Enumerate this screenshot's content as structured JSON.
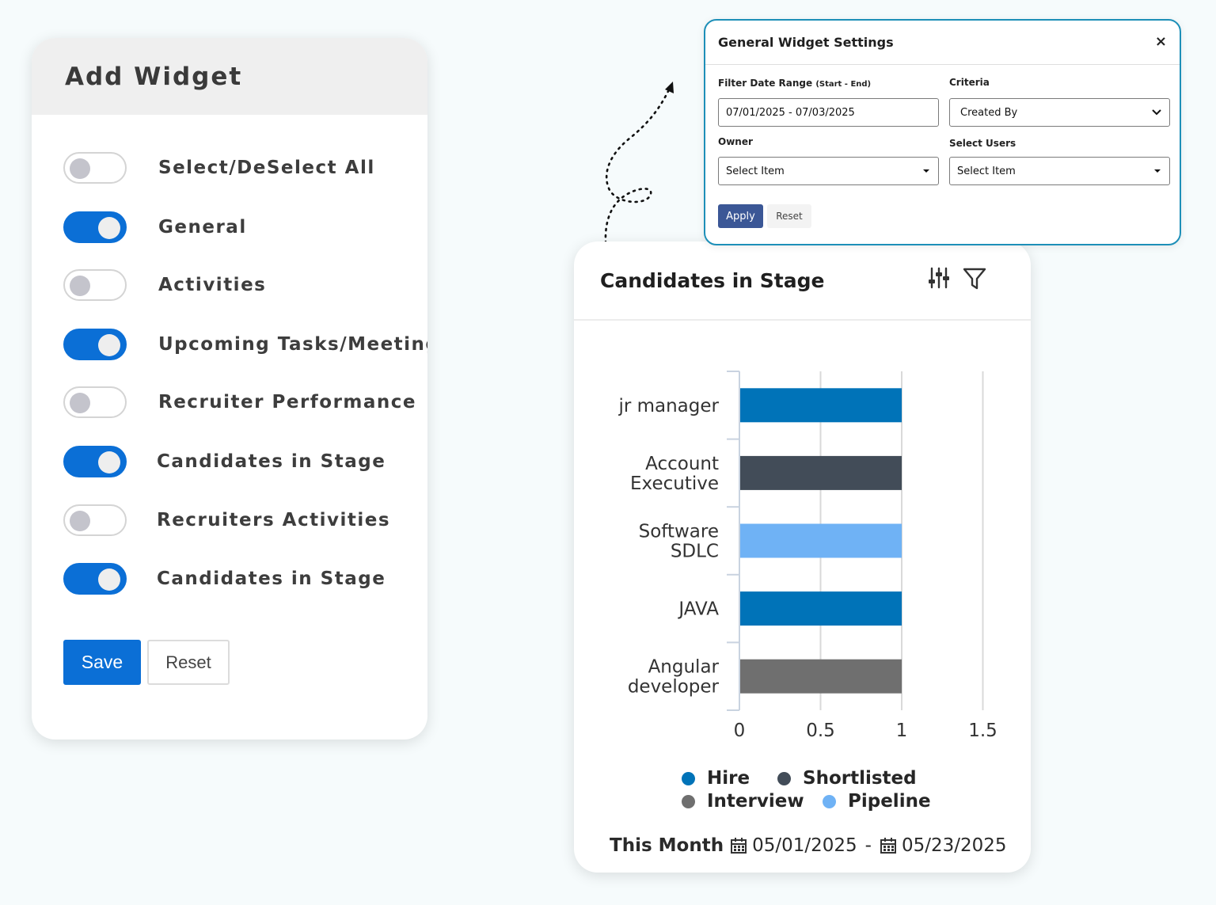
{
  "add_widget": {
    "title": "Add Widget",
    "toggles": [
      {
        "label": "Select/DeSelect All",
        "on": false
      },
      {
        "label": "General",
        "on": true
      },
      {
        "label": "Activities",
        "on": false
      },
      {
        "label": "Upcoming Tasks/Meetings",
        "on": true
      },
      {
        "label": "Recruiter Performance",
        "on": false
      },
      {
        "label": "Candidates in Stage",
        "on": true
      },
      {
        "label": "Recruiters Activities",
        "on": false
      },
      {
        "label": "Candidates in Stage",
        "on": true
      }
    ],
    "save_label": "Save",
    "reset_label": "Reset"
  },
  "settings": {
    "title": "General Widget Settings",
    "close_icon": "×",
    "date_range_label": "Filter Date Range",
    "date_range_hint": "(Start - End)",
    "date_range_value": "07/01/2025 - 07/03/2025",
    "criteria_label": "Criteria",
    "criteria_value": "Created By",
    "owner_label": "Owner",
    "owner_value": "Select Item",
    "users_label": "Select Users",
    "users_value": "Select Item",
    "apply_label": "Apply",
    "reset_label": "Reset"
  },
  "chart_card": {
    "title": "Candidates in Stage",
    "icons": [
      "sliders-icon",
      "filter-icon"
    ],
    "period_label": "This Month",
    "start_date": "05/01/2025",
    "separator": "-",
    "end_date": "05/23/2025"
  },
  "chart_data": {
    "type": "bar",
    "orientation": "horizontal",
    "categories": [
      [
        "jr manager"
      ],
      [
        "Account",
        "Executive"
      ],
      [
        "Software",
        "SDLC"
      ],
      [
        "JAVA"
      ],
      [
        "Angular",
        "developer"
      ]
    ],
    "values": [
      1,
      1,
      1,
      1,
      1
    ],
    "bar_colors": [
      "#0073b8",
      "#424c58",
      "#6fb2f5",
      "#0073b8",
      "#6f6f6f"
    ],
    "xlim": [
      0,
      1.5
    ],
    "xticks": [
      "0",
      "0.5",
      "1",
      "1.5"
    ],
    "grid": true,
    "legend": [
      {
        "name": "Hire",
        "color": "#0073b8"
      },
      {
        "name": "Shortlisted",
        "color": "#424c58"
      },
      {
        "name": "Interview",
        "color": "#6f6f6f"
      },
      {
        "name": "Pipeline",
        "color": "#6fb2f5"
      }
    ],
    "legend_position": "bottom"
  }
}
